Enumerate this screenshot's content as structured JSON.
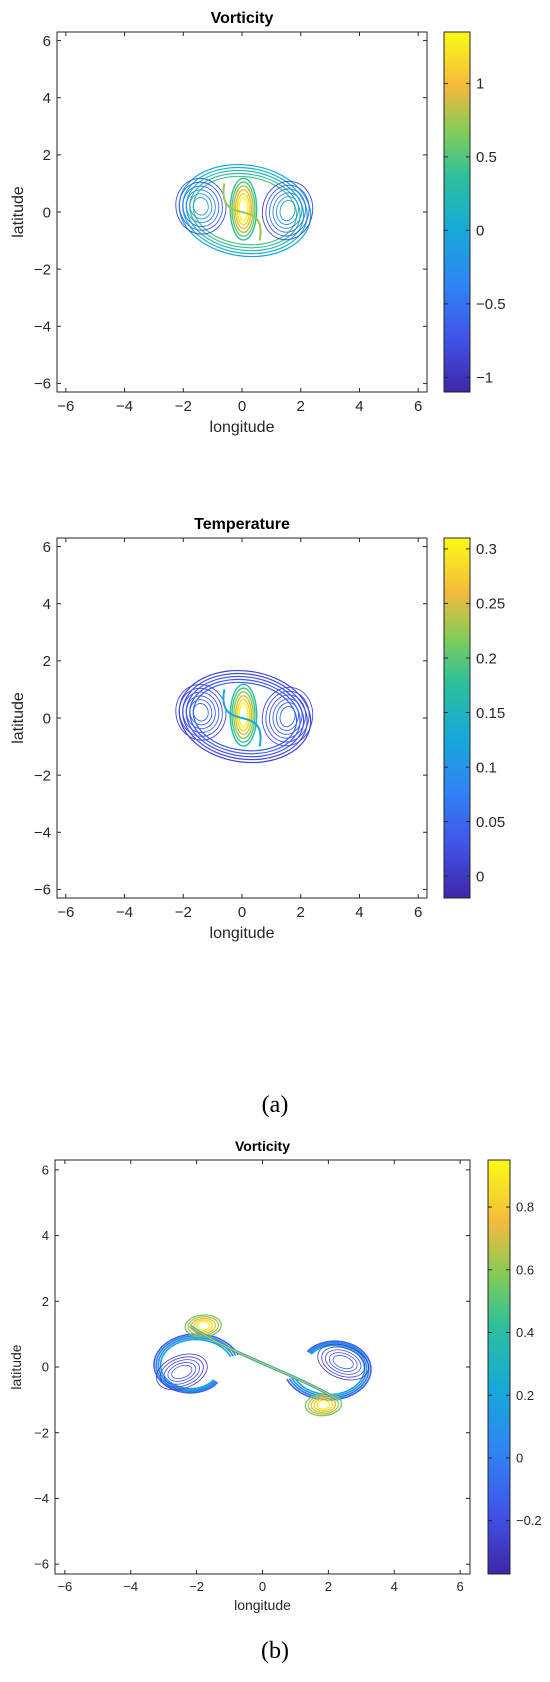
{
  "chart_data": [
    {
      "type": "contour",
      "title": "Vorticity",
      "xlabel": "longitude",
      "ylabel": "latitude",
      "xlim": [
        -6.3,
        6.3
      ],
      "ylim": [
        -6.3,
        6.3
      ],
      "xticks": [
        -6,
        -4,
        -2,
        0,
        2,
        4,
        6
      ],
      "yticks": [
        -6,
        -4,
        -2,
        0,
        2,
        4,
        6
      ],
      "colorbar": {
        "min": -1.1,
        "max": 1.35,
        "ticks": [
          -1,
          -0.5,
          0,
          0.5,
          1
        ]
      },
      "legend": "colorbar right"
    },
    {
      "type": "contour",
      "title": "Temperature",
      "xlabel": "longitude",
      "ylabel": "latitude",
      "xlim": [
        -6.3,
        6.3
      ],
      "ylim": [
        -6.3,
        6.3
      ],
      "xticks": [
        -6,
        -4,
        -2,
        0,
        2,
        4,
        6
      ],
      "yticks": [
        -6,
        -4,
        -2,
        0,
        2,
        4,
        6
      ],
      "colorbar": {
        "min": -0.02,
        "max": 0.31,
        "ticks": [
          0,
          0.05,
          0.1,
          0.15,
          0.2,
          0.25,
          0.3
        ]
      },
      "legend": "colorbar right"
    },
    {
      "type": "contour",
      "title": "Vorticity",
      "xlabel": "longitude",
      "ylabel": "latitude",
      "xlim": [
        -6.3,
        6.3
      ],
      "ylim": [
        -6.3,
        6.3
      ],
      "xticks": [
        -6,
        -4,
        -2,
        0,
        2,
        4,
        6
      ],
      "yticks": [
        -6,
        -4,
        -2,
        0,
        2,
        4,
        6
      ],
      "colorbar": {
        "min": -0.37,
        "max": 0.95,
        "ticks": [
          -0.2,
          0,
          0.2,
          0.4,
          0.6,
          0.8
        ]
      },
      "legend": "colorbar right"
    }
  ],
  "labels": {
    "a": "(a)",
    "b": "(b)"
  },
  "colors": {
    "parula_low": "#3e26a8",
    "parula_mid": "#23b5a6",
    "parula_high": "#f9fb15"
  }
}
